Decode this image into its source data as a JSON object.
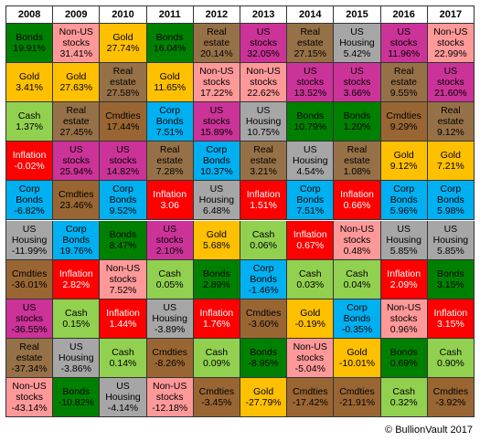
{
  "copyright": "© BullionVault 2017",
  "colors": {
    "Bonds": "#008000",
    "Non-US stocks": "#ff9999",
    "Gold": "#ffc000",
    "Real estate": "#967147",
    "US stocks": "#cc3399",
    "US Housing": "#a6a6a6",
    "Cash": "#92d050",
    "Cmdties": "#996633",
    "Corp Bonds": "#00b0f0",
    "Inflation": "#ff0000"
  },
  "chart_data": {
    "type": "table",
    "title": "",
    "columns": [
      "2008",
      "2009",
      "2010",
      "2011",
      "2012",
      "2013",
      "2014",
      "2015",
      "2016",
      "2017"
    ],
    "table": [
      [
        [
          "Bonds",
          "19.91%"
        ],
        [
          "Non-US stocks",
          "31.41%"
        ],
        [
          "Gold",
          "27.74%"
        ],
        [
          "Bonds",
          "16.04%"
        ],
        [
          "Real estate",
          "20.14%"
        ],
        [
          "US stocks",
          "32.05%"
        ],
        [
          "Real estate",
          "27.15%"
        ],
        [
          "US Housing",
          "5.42%"
        ],
        [
          "US stocks",
          "11.96%"
        ],
        [
          "Non-US stocks",
          "22.99%"
        ]
      ],
      [
        [
          "Gold",
          "3.41%"
        ],
        [
          "Gold",
          "27.63%"
        ],
        [
          "Real estate",
          "27.58%"
        ],
        [
          "Gold",
          "11.65%"
        ],
        [
          "Non-US stocks",
          "17.22%"
        ],
        [
          "Non-US stocks",
          "22.62%"
        ],
        [
          "US stocks",
          "13.52%"
        ],
        [
          "US stocks",
          "3.66%"
        ],
        [
          "Real estate",
          "9.55%"
        ],
        [
          "US stocks",
          "21.60%"
        ]
      ],
      [
        [
          "Cash",
          "1.37%"
        ],
        [
          "Real estate",
          "27.45%"
        ],
        [
          "Cmdties",
          "17.44%"
        ],
        [
          "Corp Bonds",
          "7.51%"
        ],
        [
          "US stocks",
          "15.89%"
        ],
        [
          "US Housing",
          "10.75%"
        ],
        [
          "Bonds",
          "10.79%"
        ],
        [
          "Bonds",
          "1.20%"
        ],
        [
          "Cmdties",
          "9.29%"
        ],
        [
          "Real estate",
          "9.12%"
        ]
      ],
      [
        [
          "Inflation",
          "-0.02%"
        ],
        [
          "US stocks",
          "25.94%"
        ],
        [
          "US stocks",
          "14.82%"
        ],
        [
          "Real estate",
          "7.28%"
        ],
        [
          "Corp Bonds",
          "10.37%"
        ],
        [
          "Real estate",
          "3.21%"
        ],
        [
          "US Housing",
          "4.54%"
        ],
        [
          "Real estate",
          "1.08%"
        ],
        [
          "Gold",
          "9.12%"
        ],
        [
          "Gold",
          "7.21%"
        ]
      ],
      [
        [
          "Corp Bonds",
          "-6.82%"
        ],
        [
          "Cmdties",
          "23.46%"
        ],
        [
          "Corp Bonds",
          "9.52%"
        ],
        [
          "Inflation",
          "3.06"
        ],
        [
          "US Housing",
          "6.48%"
        ],
        [
          "Inflation",
          "1.51%"
        ],
        [
          "Corp Bonds",
          "7.51%"
        ],
        [
          "Inflation",
          "0.66%"
        ],
        [
          "Corp Bonds",
          "5.96%"
        ],
        [
          "Corp Bonds",
          "5.98%"
        ]
      ],
      [
        [
          "US Housing",
          "-11.99%"
        ],
        [
          "Corp Bonds",
          "19.76%"
        ],
        [
          "Bonds",
          "8.47%"
        ],
        [
          "US stocks",
          "2.10%"
        ],
        [
          "Gold",
          "5.68%"
        ],
        [
          "Cash",
          "0.06%"
        ],
        [
          "Inflation",
          "0.67%"
        ],
        [
          "Non-US stocks",
          "0.48%"
        ],
        [
          "US Housing",
          "5.85%"
        ],
        [
          "US Housing",
          "5.85%"
        ]
      ],
      [
        [
          "Cmdties",
          "-36.01%"
        ],
        [
          "Inflation",
          "2.82%"
        ],
        [
          "Non-US stocks",
          "7.52%"
        ],
        [
          "Cash",
          "0.05%"
        ],
        [
          "Bonds",
          "2.89%"
        ],
        [
          "Corp Bonds",
          "-1.46%"
        ],
        [
          "Cash",
          "0.03%"
        ],
        [
          "Cash",
          "0.04%"
        ],
        [
          "Inflation",
          "2.09%"
        ],
        [
          "Bonds",
          "3.15%"
        ]
      ],
      [
        [
          "US stocks",
          "-36.55%"
        ],
        [
          "Cash",
          "0.15%"
        ],
        [
          "Inflation",
          "1.44%"
        ],
        [
          "US Housing",
          "-3.89%"
        ],
        [
          "Inflation",
          "1.76%"
        ],
        [
          "Cmdties",
          "-3.60%"
        ],
        [
          "Gold",
          "-0.19%"
        ],
        [
          "Corp Bonds",
          "-0.35%"
        ],
        [
          "Non-US stocks",
          "0.96%"
        ],
        [
          "Inflation",
          "3.15%"
        ]
      ],
      [
        [
          "Real estate",
          "-37.34%"
        ],
        [
          "US Housing",
          "-3.86%"
        ],
        [
          "Cash",
          "0.14%"
        ],
        [
          "Cmdties",
          "-8.26%"
        ],
        [
          "Cash",
          "0.09%"
        ],
        [
          "Bonds",
          "-8.95%"
        ],
        [
          "Non-US stocks",
          "-5.04%"
        ],
        [
          "Gold",
          "-10.01%"
        ],
        [
          "Bonds",
          "0.69%"
        ],
        [
          "Cash",
          "0.90%"
        ]
      ],
      [
        [
          "Non-US stocks",
          "-43.14%"
        ],
        [
          "Bonds",
          "-10.82%"
        ],
        [
          "US Housing",
          "-4.14%"
        ],
        [
          "Non-US stocks",
          "-12.18%"
        ],
        [
          "Cmdties",
          "-3.45%"
        ],
        [
          "Gold",
          "-27.79%"
        ],
        [
          "Cmdties",
          "-17.42%"
        ],
        [
          "Cmdties",
          "-21.91%"
        ],
        [
          "Cash",
          "0.32%"
        ],
        [
          "Cmdties",
          "-3.92%"
        ]
      ]
    ]
  }
}
